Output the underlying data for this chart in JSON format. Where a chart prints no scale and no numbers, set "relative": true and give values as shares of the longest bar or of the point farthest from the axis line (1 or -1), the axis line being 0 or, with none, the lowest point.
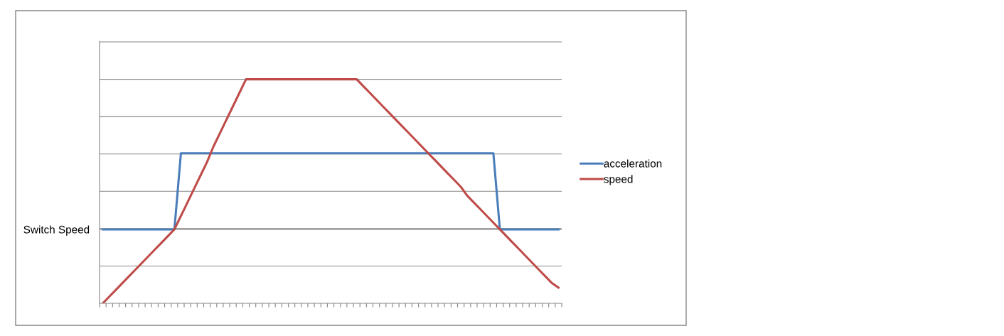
{
  "chart_data": {
    "type": "line",
    "relative": true,
    "categories": [
      null,
      null,
      null,
      null,
      null,
      null,
      null,
      null,
      null,
      null,
      null,
      null,
      null,
      null,
      null,
      null,
      null,
      null,
      null,
      null,
      null,
      null,
      null,
      null,
      null,
      null,
      null,
      null,
      null,
      null,
      null,
      null,
      null,
      null,
      null,
      null,
      null,
      null,
      null,
      null,
      null,
      null,
      null,
      null,
      null,
      null,
      null,
      null,
      null,
      null,
      null,
      null,
      null,
      null,
      null,
      null,
      null,
      null,
      null,
      null,
      null,
      null,
      null,
      null,
      null,
      null,
      null,
      null,
      null,
      null,
      null
    ],
    "series": [
      {
        "name": "acceleration",
        "color": "#4a7ebb",
        "values": [
          0.33,
          0.33,
          0.33,
          0.33,
          0.33,
          0.33,
          0.33,
          0.33,
          0.33,
          0.33,
          0.33,
          0.33,
          0.67,
          0.67,
          0.67,
          0.67,
          0.67,
          0.67,
          0.67,
          0.67,
          0.67,
          0.67,
          0.67,
          0.67,
          0.67,
          0.67,
          0.67,
          0.67,
          0.67,
          0.67,
          0.67,
          0.67,
          0.67,
          0.67,
          0.67,
          0.67,
          0.67,
          0.67,
          0.67,
          0.67,
          0.67,
          0.67,
          0.67,
          0.67,
          0.67,
          0.67,
          0.67,
          0.67,
          0.67,
          0.67,
          0.67,
          0.67,
          0.67,
          0.67,
          0.67,
          0.67,
          0.67,
          0.67,
          0.67,
          0.67,
          0.67,
          0.33,
          0.33,
          0.33,
          0.33,
          0.33,
          0.33,
          0.33,
          0.33,
          0.33,
          0.33
        ]
      },
      {
        "name": "speed",
        "color": "#be4b48",
        "values": [
          0,
          0.03,
          0.06,
          0.09,
          0.12,
          0.15,
          0.18,
          0.21,
          0.24,
          0.27,
          0.3,
          0.33,
          0.39,
          0.45,
          0.51,
          0.57,
          0.63,
          0.7,
          0.76,
          0.82,
          0.88,
          0.94,
          1,
          1,
          1,
          1,
          1,
          1,
          1,
          1,
          1,
          1,
          1,
          1,
          1,
          1,
          1,
          1,
          1,
          1,
          0.97,
          0.94,
          0.91,
          0.88,
          0.85,
          0.82,
          0.79,
          0.76,
          0.73,
          0.7,
          0.67,
          0.64,
          0.61,
          0.58,
          0.55,
          0.52,
          0.48,
          0.45,
          0.42,
          0.39,
          0.36,
          0.33,
          0.3,
          0.27,
          0.24,
          0.21,
          0.18,
          0.15,
          0.12,
          0.09,
          0.07
        ]
      }
    ],
    "ref_lines": [
      {
        "axis": "y",
        "value": 0.33,
        "label": "Switch Speed",
        "color": "#868686"
      }
    ],
    "tick_labels": "y",
    "grid": "y",
    "legend": "right",
    "marker": "none",
    "line_style": "solid"
  }
}
